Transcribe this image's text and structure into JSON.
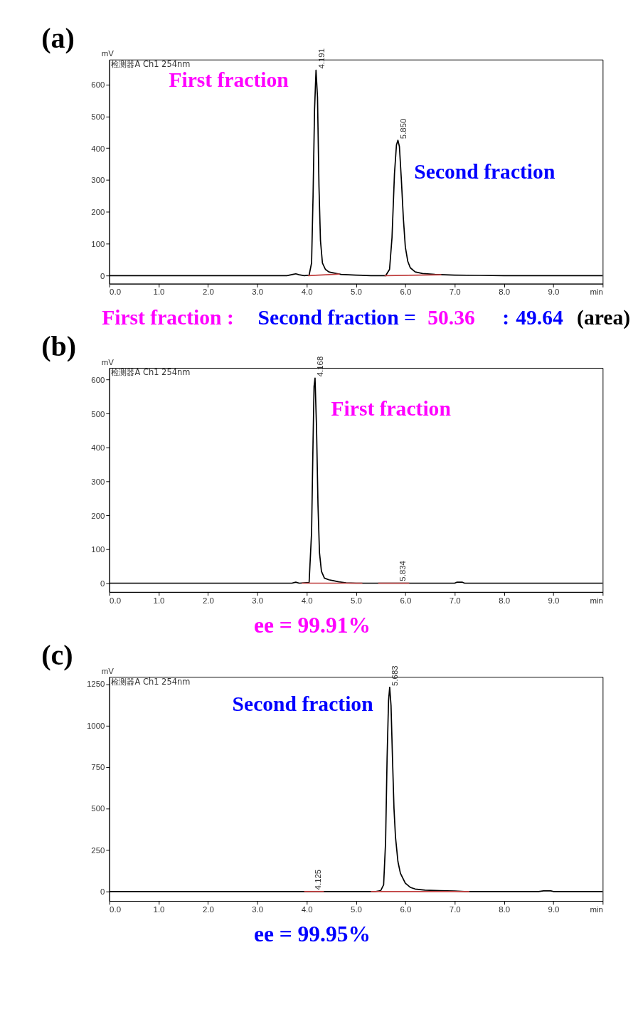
{
  "chart_data": [
    {
      "type": "line",
      "title": "(a)",
      "ylabel": "mV",
      "xlim": [
        0,
        10
      ],
      "ylim": [
        -25,
        678
      ],
      "xticks": [
        {
          "value": 0,
          "label": "0.0"
        },
        {
          "value": 1,
          "label": "1.0"
        },
        {
          "value": 2,
          "label": "2.0"
        },
        {
          "value": 3,
          "label": "3.0"
        },
        {
          "value": 4,
          "label": "4.0"
        },
        {
          "value": 5,
          "label": "5.0"
        },
        {
          "value": 6,
          "label": "6.0"
        },
        {
          "value": 7,
          "label": "7.0"
        },
        {
          "value": 8,
          "label": "8.0"
        },
        {
          "value": 9,
          "label": "9.0"
        },
        {
          "value": 10,
          "label": "min"
        }
      ],
      "yticks": [
        0,
        100,
        200,
        300,
        400,
        500,
        600
      ],
      "grid": false,
      "marker": "none",
      "line_style": "solid",
      "series": [
        {
          "color": "#000000",
          "x": [
            0,
            3.6,
            3.72,
            3.78,
            3.85,
            3.95,
            4.05,
            4.1,
            4.13,
            4.16,
            4.19,
            4.22,
            4.25,
            4.28,
            4.32,
            4.38,
            4.45,
            4.6,
            4.7,
            5.0,
            5.3,
            5.6,
            5.68,
            5.73,
            5.78,
            5.82,
            5.85,
            5.88,
            5.92,
            5.96,
            6.0,
            6.05,
            6.1,
            6.2,
            6.35,
            6.6,
            7.0,
            7.5,
            8.0,
            9.0,
            10
          ],
          "values": [
            0,
            0,
            4,
            6,
            3,
            0,
            2,
            40,
            250,
            520,
            645,
            560,
            280,
            110,
            40,
            20,
            12,
            7,
            4,
            2,
            0,
            0,
            20,
            120,
            320,
            410,
            425,
            405,
            300,
            180,
            90,
            45,
            25,
            12,
            7,
            4,
            2,
            1,
            0,
            0,
            0
          ]
        },
        {
          "color": "#c04040",
          "x": [
            4.03,
            4.67
          ],
          "values": [
            0,
            5
          ]
        },
        {
          "color": "#c04040",
          "x": [
            5.58,
            6.73
          ],
          "values": [
            0,
            3
          ]
        }
      ],
      "annotations": [
        "检测器A Ch1 254nm",
        {
          "text": "4.191",
          "x": 4.191,
          "y": 645
        },
        {
          "text": "5.850",
          "x": 5.85,
          "y": 425
        },
        "First fraction",
        "Second fraction",
        "First fraction :",
        "Second fraction =",
        "50.36",
        ":",
        "49.64",
        "(area)"
      ]
    },
    {
      "type": "line",
      "title": "(b)",
      "ylabel": "mV",
      "xlim": [
        0,
        10
      ],
      "ylim": [
        -26,
        635
      ],
      "xticks": [
        {
          "value": 0,
          "label": "0.0"
        },
        {
          "value": 1,
          "label": "1.0"
        },
        {
          "value": 2,
          "label": "2.0"
        },
        {
          "value": 3,
          "label": "3.0"
        },
        {
          "value": 4,
          "label": "4.0"
        },
        {
          "value": 5,
          "label": "5.0"
        },
        {
          "value": 6,
          "label": "6.0"
        },
        {
          "value": 7,
          "label": "7.0"
        },
        {
          "value": 8,
          "label": "8.0"
        },
        {
          "value": 9,
          "label": "9.0"
        },
        {
          "value": 10,
          "label": "min"
        }
      ],
      "yticks": [
        0,
        100,
        200,
        300,
        400,
        500,
        600
      ],
      "grid": false,
      "marker": "none",
      "line_style": "solid",
      "series": [
        {
          "color": "#000000",
          "x": [
            0,
            3.7,
            3.78,
            3.85,
            4.05,
            4.1,
            4.13,
            4.15,
            4.17,
            4.2,
            4.23,
            4.26,
            4.3,
            4.36,
            4.45,
            4.55,
            4.65,
            4.8,
            5.0,
            7.0,
            7.05,
            7.15,
            7.2,
            10
          ],
          "values": [
            0,
            0,
            3,
            0,
            2,
            150,
            420,
            580,
            605,
            460,
            230,
            90,
            35,
            15,
            10,
            7,
            4,
            1,
            0,
            0,
            3,
            3,
            0,
            0
          ]
        },
        {
          "color": "#c04040",
          "x": [
            3.9,
            5.13
          ],
          "values": [
            0,
            0
          ]
        },
        {
          "color": "#c04040",
          "x": [
            5.45,
            6.08
          ],
          "values": [
            0,
            0
          ]
        }
      ],
      "annotations": [
        "检测器A Ch1 254nm",
        {
          "text": "4.168",
          "x": 4.168,
          "y": 605
        },
        {
          "text": "5.834",
          "x": 5.834,
          "y": 2
        },
        "First fraction",
        "ee = 99.91%"
      ]
    },
    {
      "type": "line",
      "title": "(c)",
      "ylabel": "mV",
      "xlim": [
        0,
        10
      ],
      "ylim": [
        -57,
        1293
      ],
      "xticks": [
        {
          "value": 0,
          "label": "0.0"
        },
        {
          "value": 1,
          "label": "1.0"
        },
        {
          "value": 2,
          "label": "2.0"
        },
        {
          "value": 3,
          "label": "3.0"
        },
        {
          "value": 4,
          "label": "4.0"
        },
        {
          "value": 5,
          "label": "5.0"
        },
        {
          "value": 6,
          "label": "6.0"
        },
        {
          "value": 7,
          "label": "7.0"
        },
        {
          "value": 8,
          "label": "8.0"
        },
        {
          "value": 9,
          "label": "9.0"
        },
        {
          "value": 10,
          "label": "min"
        }
      ],
      "yticks": [
        0,
        250,
        500,
        750,
        1000,
        1250
      ],
      "grid": false,
      "marker": "none",
      "line_style": "solid",
      "series": [
        {
          "color": "#000000",
          "x": [
            0,
            5.4,
            5.5,
            5.56,
            5.6,
            5.63,
            5.66,
            5.683,
            5.71,
            5.74,
            5.77,
            5.8,
            5.85,
            5.9,
            6.0,
            6.1,
            6.2,
            6.4,
            6.7,
            7.0,
            7.2,
            8.7,
            8.8,
            8.95,
            9.0,
            10
          ],
          "values": [
            0,
            0,
            5,
            40,
            300,
            800,
            1150,
            1230,
            1120,
            800,
            500,
            330,
            180,
            110,
            50,
            25,
            15,
            8,
            5,
            3,
            0,
            0,
            4,
            4,
            0,
            0
          ]
        },
        {
          "color": "#c04040",
          "x": [
            3.95,
            4.35
          ],
          "values": [
            0,
            0
          ]
        },
        {
          "color": "#c04040",
          "x": [
            5.3,
            7.3
          ],
          "values": [
            0,
            0
          ]
        }
      ],
      "annotations": [
        "检测器A Ch1 254nm",
        {
          "text": "4.125",
          "x": 4.125,
          "y": 2
        },
        {
          "text": "5.683",
          "x": 5.683,
          "y": 1230
        },
        "Second fraction",
        "ee = 99.95%"
      ]
    }
  ]
}
